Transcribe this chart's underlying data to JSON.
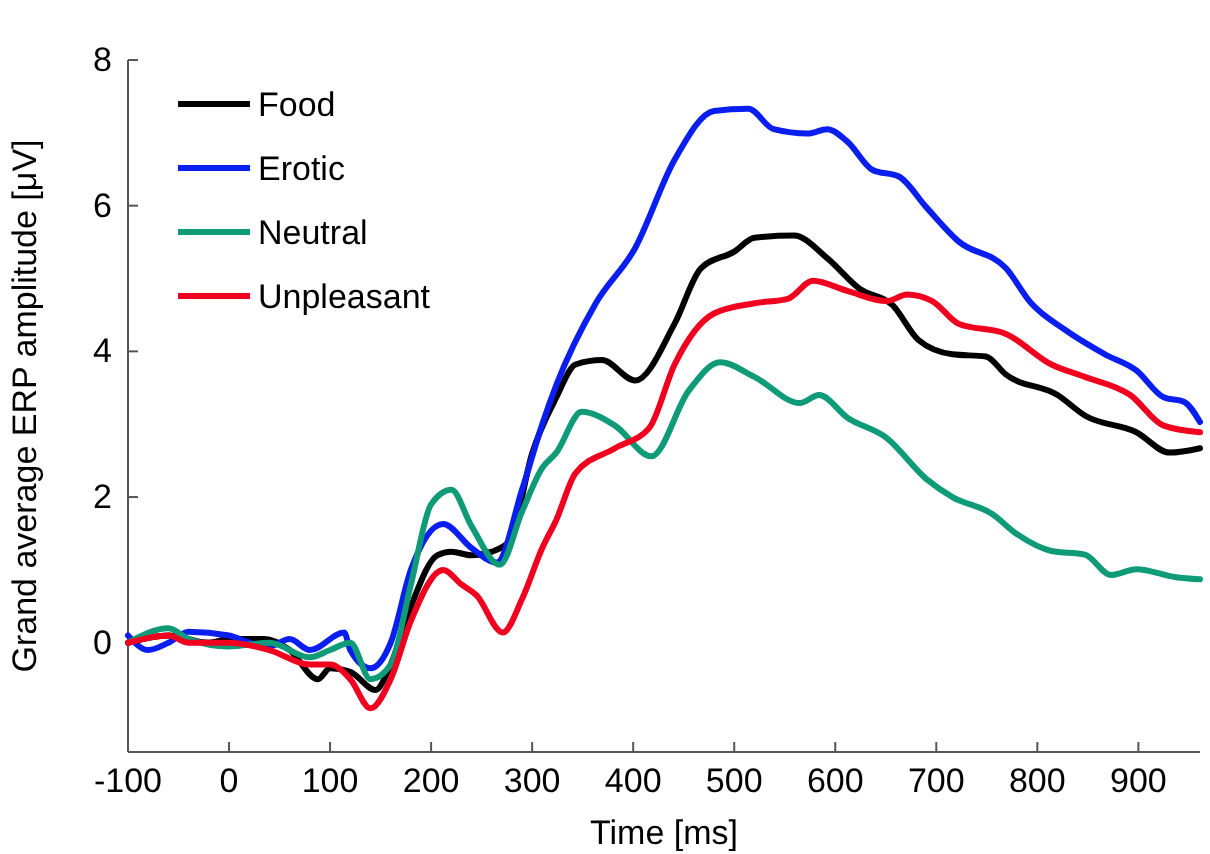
{
  "chart_data": {
    "type": "line",
    "xlabel": "Time [ms]",
    "ylabel": "Grand average ERP amplitude [μV]",
    "xlim": [
      -100,
      961
    ],
    "ylim": [
      -1.5,
      8
    ],
    "xticks": [
      -100,
      0,
      100,
      200,
      300,
      400,
      500,
      600,
      700,
      800,
      900
    ],
    "yticks": [
      0,
      2,
      4,
      6,
      8
    ],
    "grid": false,
    "legend": "top left",
    "marker": "none",
    "line_style": "solid",
    "series": [
      {
        "name": "Food",
        "color": "#000000",
        "x": [
          -100,
          -60,
          -20,
          0,
          35,
          60,
          88,
          100,
          120,
          145,
          160,
          180,
          206,
          220,
          240,
          260,
          278,
          300,
          324,
          343,
          369,
          402,
          441,
          467,
          500,
          520,
          559,
          592,
          624,
          657,
          682,
          716,
          749,
          769,
          820,
          847,
          898,
          931,
          961
        ],
        "values": [
          0,
          0.1,
          0,
          0.05,
          0.05,
          -0.1,
          -0.5,
          -0.35,
          -0.4,
          -0.65,
          -0.3,
          0.5,
          1.2,
          1.25,
          1.2,
          1.25,
          1.4,
          2.6,
          3.37,
          3.82,
          3.88,
          3.6,
          4.38,
          5.14,
          5.37,
          5.56,
          5.59,
          5.28,
          4.86,
          4.63,
          4.16,
          3.96,
          3.93,
          3.68,
          3.4,
          3.12,
          2.89,
          2.61,
          2.67
        ]
      },
      {
        "name": "Erotic",
        "color": "#0a1ef0",
        "x": [
          -100,
          -80,
          -60,
          -40,
          0,
          20,
          40,
          60,
          80,
          114,
          120,
          140,
          160,
          180,
          212,
          240,
          265,
          290,
          310,
          324,
          363,
          402,
          441,
          480,
          514,
          539,
          573,
          592,
          612,
          637,
          663,
          690,
          722,
          769,
          794,
          827,
          867,
          898,
          925,
          945,
          961
        ],
        "values": [
          0.1,
          -0.1,
          0,
          0.15,
          0.1,
          0,
          -0.05,
          0.05,
          -0.1,
          0.14,
          -0.1,
          -0.35,
          0,
          1,
          1.63,
          1.3,
          1.1,
          2.1,
          3,
          3.54,
          4.66,
          5.42,
          6.63,
          7.3,
          7.33,
          7.05,
          6.99,
          7.05,
          6.88,
          6.49,
          6.4,
          5.98,
          5.51,
          5.14,
          4.66,
          4.3,
          3.96,
          3.74,
          3.37,
          3.31,
          3.03
        ]
      },
      {
        "name": "Neutral",
        "color": "#0f9a78",
        "x": [
          -100,
          -60,
          -40,
          0,
          40,
          80,
          100,
          120,
          140,
          160,
          180,
          200,
          220,
          240,
          268,
          290,
          310,
          324,
          349,
          382,
          418,
          455,
          486,
          520,
          565,
          584,
          612,
          651,
          690,
          716,
          755,
          780,
          814,
          847,
          873,
          898,
          937,
          961
        ],
        "values": [
          0,
          0.2,
          0.05,
          -0.05,
          0,
          -0.2,
          -0.1,
          0,
          -0.5,
          -0.3,
          0.8,
          1.9,
          2.1,
          1.6,
          1.07,
          1.8,
          2.4,
          2.61,
          3.17,
          2.98,
          2.56,
          3.46,
          3.85,
          3.65,
          3.29,
          3.4,
          3.09,
          2.81,
          2.25,
          2,
          1.77,
          1.49,
          1.26,
          1.21,
          0.93,
          1.01,
          0.9,
          0.87
        ]
      },
      {
        "name": "Unpleasant",
        "color": "#f0001e",
        "x": [
          -100,
          -60,
          -40,
          0,
          40,
          80,
          100,
          120,
          140,
          160,
          180,
          212,
          230,
          245,
          271,
          290,
          310,
          324,
          343,
          382,
          416,
          441,
          480,
          520,
          553,
          578,
          612,
          651,
          671,
          696,
          722,
          769,
          814,
          847,
          892,
          925,
          961
        ],
        "values": [
          0,
          0.1,
          0,
          0,
          -0.1,
          -0.3,
          -0.3,
          -0.5,
          -0.9,
          -0.5,
          0.3,
          1,
          0.8,
          0.65,
          0.14,
          0.6,
          1.3,
          1.69,
          2.33,
          2.67,
          2.95,
          3.82,
          4.52,
          4.66,
          4.72,
          4.97,
          4.83,
          4.69,
          4.78,
          4.69,
          4.38,
          4.24,
          3.82,
          3.65,
          3.4,
          2.98,
          2.89
        ]
      }
    ]
  }
}
